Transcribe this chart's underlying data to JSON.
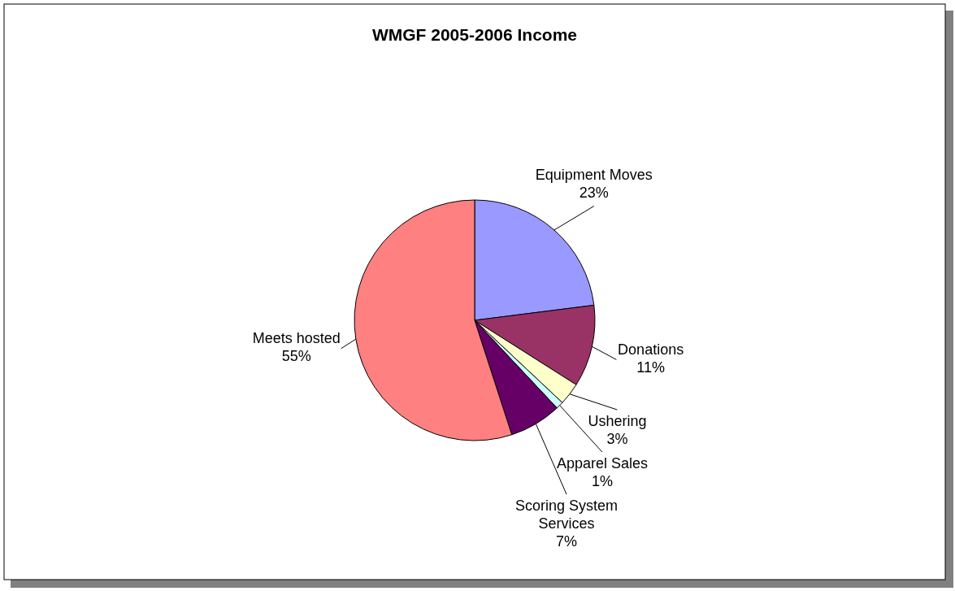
{
  "chart_data": {
    "type": "pie",
    "title": "WMGF 2005-2006 Income",
    "categories": [
      "Equipment Moves",
      "Donations",
      "Ushering",
      "Apparel Sales",
      "Scoring System Services",
      "Meets hosted"
    ],
    "values": [
      23,
      11,
      3,
      1,
      7,
      55
    ],
    "colors": [
      "#9999ff",
      "#993366",
      "#ffffcc",
      "#ccffff",
      "#660066",
      "#ff8080"
    ],
    "value_labels": [
      "23%",
      "11%",
      "3%",
      "1%",
      "7%",
      "55%"
    ]
  }
}
